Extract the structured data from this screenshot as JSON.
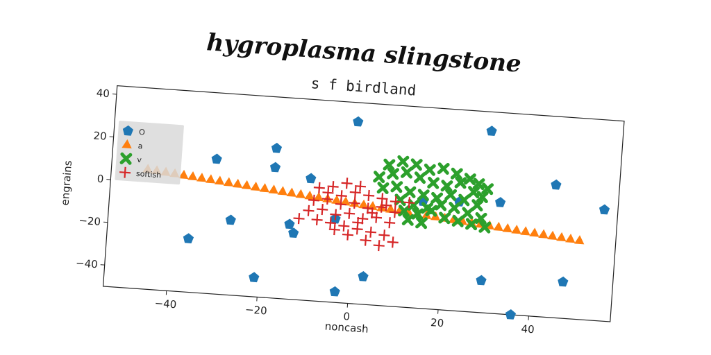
{
  "header": {
    "title": "hygroplasma slingstone",
    "subtitle": "s f birdland"
  },
  "chart_data": {
    "type": "scatter",
    "title": "s f birdland",
    "xlabel": "noncash",
    "ylabel": "engrains",
    "xlim": [
      -54,
      58
    ],
    "ylim": [
      -50,
      44
    ],
    "xticks": [
      -40,
      -20,
      0,
      20,
      40
    ],
    "yticks": [
      -40,
      -20,
      0,
      20,
      40
    ],
    "grid": false,
    "legend_position": "center-left",
    "series": [
      {
        "name": "O",
        "marker": "pentagon",
        "color": "#1f77b4",
        "points": [
          [
            -0.5,
            35
          ],
          [
            29,
            35
          ],
          [
            -18,
            20
          ],
          [
            -31,
            13
          ],
          [
            -18,
            11
          ],
          [
            -10,
            7
          ],
          [
            44,
            12
          ],
          [
            32,
            2
          ],
          [
            55,
            2
          ],
          [
            15,
            0
          ],
          [
            23,
            1
          ],
          [
            -27,
            -15
          ],
          [
            -14,
            -15
          ],
          [
            -13,
            -19
          ],
          [
            -36,
            -25
          ],
          [
            -4,
            -11
          ],
          [
            29,
            -35
          ],
          [
            47,
            -33
          ],
          [
            3,
            -37
          ],
          [
            -21,
            -41
          ],
          [
            -3,
            -45
          ],
          [
            36,
            -50
          ],
          [
            36,
            -53
          ],
          [
            19,
            -57
          ]
        ]
      },
      {
        "name": "a",
        "marker": "triangle",
        "color": "#ff7f0e",
        "points": [
          [
            -46,
            6.0
          ],
          [
            -44,
            5.6
          ],
          [
            -42,
            5.2
          ],
          [
            -40,
            4.8
          ],
          [
            -38,
            4.4
          ],
          [
            -36,
            4.0
          ],
          [
            -34,
            3.6
          ],
          [
            -32,
            3.2
          ],
          [
            -30,
            2.8
          ],
          [
            -28,
            2.4
          ],
          [
            -26,
            2.0
          ],
          [
            -24,
            1.6
          ],
          [
            -22,
            1.2
          ],
          [
            -20,
            0.8
          ],
          [
            -18,
            0.4
          ],
          [
            -16,
            0.0
          ],
          [
            -14,
            -0.4
          ],
          [
            -12,
            -0.8
          ],
          [
            -10,
            -1.2
          ],
          [
            -8,
            -1.6
          ],
          [
            -6,
            -2.0
          ],
          [
            -4,
            -2.4
          ],
          [
            -2,
            -2.8
          ],
          [
            0,
            -3.2
          ],
          [
            2,
            -3.6
          ],
          [
            4,
            -4.0
          ],
          [
            6,
            -4.4
          ],
          [
            8,
            -4.8
          ],
          [
            10,
            -5.2
          ],
          [
            12,
            -5.6
          ],
          [
            14,
            -6.0
          ],
          [
            16,
            -6.4
          ],
          [
            18,
            -6.8
          ],
          [
            20,
            -7.2
          ],
          [
            22,
            -7.6
          ],
          [
            24,
            -8.0
          ],
          [
            26,
            -8.4
          ],
          [
            28,
            -8.8
          ],
          [
            30,
            -9.2
          ],
          [
            32,
            -9.6
          ],
          [
            34,
            -10.0
          ],
          [
            36,
            -10.4
          ],
          [
            38,
            -10.8
          ],
          [
            40,
            -11.2
          ],
          [
            42,
            -11.6
          ],
          [
            44,
            -12.0
          ],
          [
            46,
            -12.4
          ],
          [
            48,
            -12.8
          ],
          [
            50,
            -13.2
          ]
        ]
      },
      {
        "name": "v",
        "marker": "x-filled",
        "color": "#2ca02c",
        "points": [
          [
            7,
            16
          ],
          [
            10,
            18
          ],
          [
            13,
            17
          ],
          [
            16,
            15
          ],
          [
            19,
            16
          ],
          [
            22,
            14
          ],
          [
            25,
            12
          ],
          [
            27,
            10
          ],
          [
            29,
            8
          ],
          [
            5,
            10
          ],
          [
            8,
            12
          ],
          [
            11,
            13
          ],
          [
            14,
            11
          ],
          [
            17,
            9
          ],
          [
            20,
            8
          ],
          [
            23,
            10
          ],
          [
            26,
            6
          ],
          [
            28,
            4
          ],
          [
            6,
            5
          ],
          [
            9,
            6
          ],
          [
            12,
            4
          ],
          [
            15,
            3
          ],
          [
            18,
            2
          ],
          [
            21,
            4
          ],
          [
            24,
            2
          ],
          [
            27,
            0
          ],
          [
            10,
            0
          ],
          [
            13,
            -2
          ],
          [
            16,
            -3
          ],
          [
            19,
            -1
          ],
          [
            22,
            -2
          ],
          [
            25,
            -4
          ],
          [
            28,
            -6
          ],
          [
            11,
            -5
          ],
          [
            14,
            -6
          ],
          [
            17,
            -4
          ],
          [
            20,
            -7
          ],
          [
            23,
            -8
          ],
          [
            26,
            -9
          ],
          [
            29,
            -10
          ],
          [
            12,
            -9
          ],
          [
            15,
            -10
          ]
        ]
      },
      {
        "name": "softish",
        "marker": "plus",
        "color": "#d62728",
        "points": [
          [
            -8,
            3
          ],
          [
            -5,
            4
          ],
          [
            -2,
            6
          ],
          [
            1,
            5
          ],
          [
            -6,
            1
          ],
          [
            -3,
            0
          ],
          [
            0,
            2
          ],
          [
            3,
            1
          ],
          [
            6,
            0
          ],
          [
            9,
            -1
          ],
          [
            12,
            -1
          ],
          [
            -9,
            -3
          ],
          [
            -6,
            -2
          ],
          [
            -3,
            -4
          ],
          [
            0,
            -3
          ],
          [
            3,
            -5
          ],
          [
            6,
            -4
          ],
          [
            9,
            -6
          ],
          [
            -10,
            -8
          ],
          [
            -7,
            -7
          ],
          [
            -4,
            -9
          ],
          [
            -1,
            -8
          ],
          [
            2,
            -10
          ],
          [
            5,
            -9
          ],
          [
            8,
            -11
          ],
          [
            -12,
            -12
          ],
          [
            -8,
            -12
          ],
          [
            -5,
            -13
          ],
          [
            -2,
            -14
          ],
          [
            1,
            -15
          ],
          [
            4,
            -16
          ],
          [
            7,
            -17
          ],
          [
            -1,
            -18
          ],
          [
            3,
            -20
          ],
          [
            6,
            -22
          ],
          [
            9,
            -20
          ],
          [
            -4,
            -16
          ],
          [
            1,
            -12
          ],
          [
            4,
            -7
          ],
          [
            7,
            -3
          ]
        ]
      }
    ]
  }
}
